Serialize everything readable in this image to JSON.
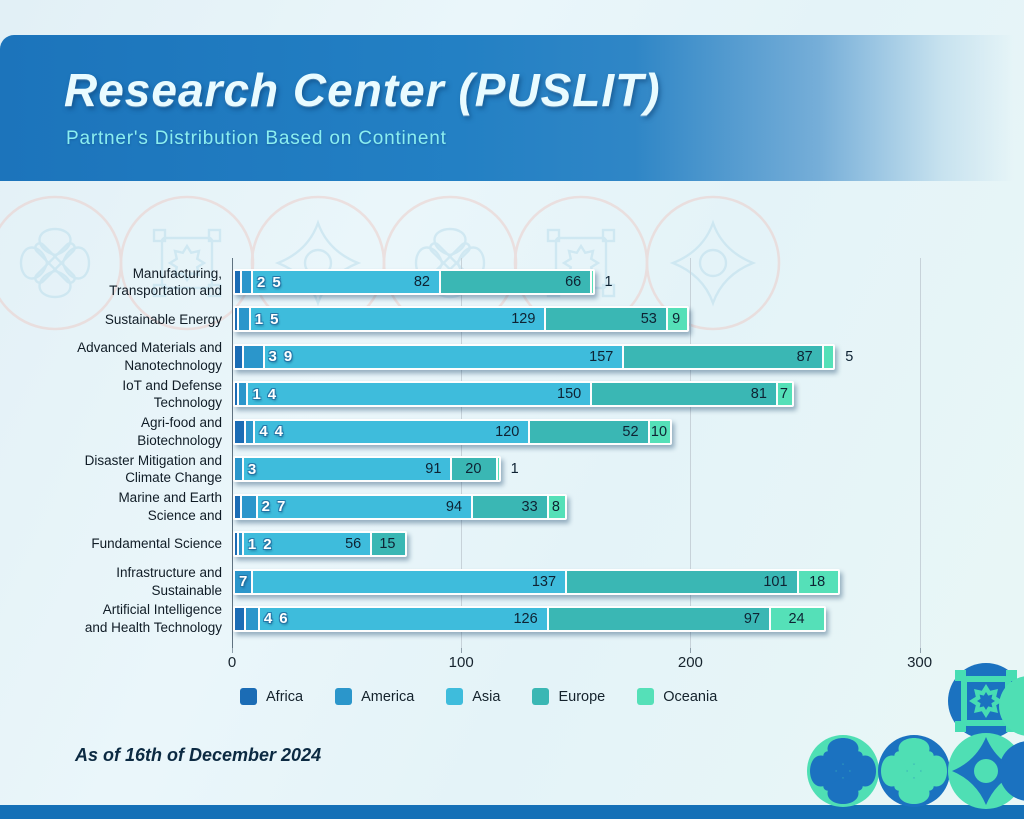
{
  "header": {
    "title": "Research Center (PUSLIT)",
    "subtitle": "Partner's Distribution Based on Continent"
  },
  "footer": {
    "note": "As of 16th of December 2024"
  },
  "colors": {
    "africa": "#1b6cb5",
    "america": "#2b96cb",
    "asia": "#3ebcdc",
    "europe": "#3ab7b4",
    "oceania": "#55e0b8",
    "header_band": "#2380c4",
    "bottom_bar": "#1570b7"
  },
  "chart_data": {
    "type": "bar",
    "orientation": "horizontal",
    "stacked": true,
    "title": "Research Center (PUSLIT)",
    "subtitle": "Partner's Distribution Based on Continent",
    "categories": [
      [
        "Manufacturing,",
        "Transportation and"
      ],
      [
        "Sustainable Energy"
      ],
      [
        "Advanced Materials and",
        "Nanotechnology"
      ],
      [
        "IoT and Defense",
        "Technology"
      ],
      [
        "Agri-food and",
        "Biotechnology"
      ],
      [
        "Disaster Mitigation and",
        "Climate Change"
      ],
      [
        "Marine and Earth",
        "Science and"
      ],
      [
        "Fundamental Science"
      ],
      [
        "Infrastructure and",
        "Sustainable"
      ],
      [
        "Artificial Intelligence",
        "and Health Technology"
      ]
    ],
    "series": [
      {
        "name": "Africa",
        "color": "#1b6cb5",
        "values": [
          2,
          1,
          3,
          1,
          4,
          0,
          2,
          1,
          0,
          4
        ]
      },
      {
        "name": "America",
        "color": "#2b96cb",
        "values": [
          5,
          5,
          9,
          4,
          4,
          3,
          7,
          2,
          7,
          6
        ]
      },
      {
        "name": "Asia",
        "color": "#3ebcdc",
        "values": [
          82,
          129,
          157,
          150,
          120,
          91,
          94,
          56,
          137,
          126
        ]
      },
      {
        "name": "Europe",
        "color": "#3ab7b4",
        "values": [
          66,
          53,
          87,
          81,
          52,
          20,
          33,
          15,
          101,
          97
        ]
      },
      {
        "name": "Oceania",
        "color": "#55e0b8",
        "values": [
          1,
          9,
          5,
          7,
          10,
          1,
          8,
          0,
          18,
          24
        ]
      }
    ],
    "x_ticks": [
      0,
      100,
      200,
      300
    ],
    "xlim": [
      0,
      300
    ],
    "grid": true,
    "legend_position": "bottom",
    "value_labels": true
  },
  "legend": {
    "items": [
      "Africa",
      "America",
      "Asia",
      "Europe",
      "Oceania"
    ]
  },
  "decor": {
    "icons": [
      "x-ornament-icon",
      "gear-ornament-icon",
      "compass-ornament-icon"
    ]
  }
}
